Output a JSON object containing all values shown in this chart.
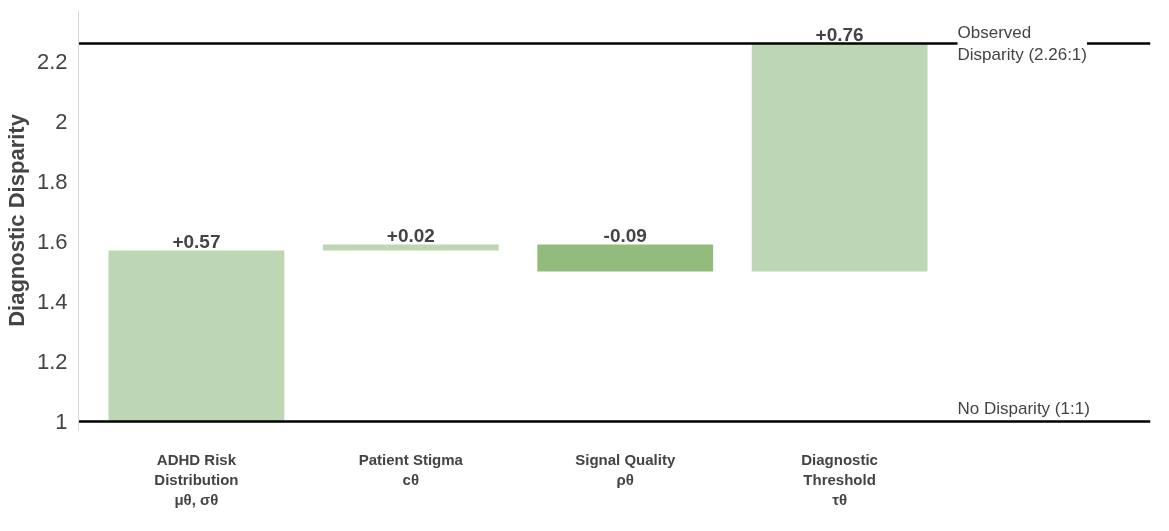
{
  "chart_data": {
    "type": "bar",
    "ylabel": "Diagnostic Disparity",
    "categories": [
      "ADHD Risk\nDistribution\nμθ, σθ",
      "Patient Stigma\ncθ",
      "Signal Quality\nρθ",
      "Diagnostic\nThreshold\nτθ"
    ],
    "values": [
      0.57,
      0.02,
      -0.09,
      0.76
    ],
    "base": [
      1,
      1.57,
      1.59,
      1.5
    ],
    "colors": [
      "#bdd7b4",
      "#bdd7b4",
      "#93bb7c",
      "#bdd7b4"
    ],
    "value_labels": [
      "+0.57",
      "+0.02",
      "-0.09",
      "+0.76"
    ],
    "ylim": [
      0.97,
      2.37
    ],
    "yticks": [
      1,
      1.2,
      1.4,
      1.6,
      1.8,
      2,
      2.2
    ],
    "ref_lines": [
      {
        "axis": "y",
        "value": 1,
        "label": "No Disparity (1:1)"
      },
      {
        "axis": "y",
        "value": 2.26,
        "label": "Observed\nDisparity (2.26:1)"
      }
    ]
  }
}
